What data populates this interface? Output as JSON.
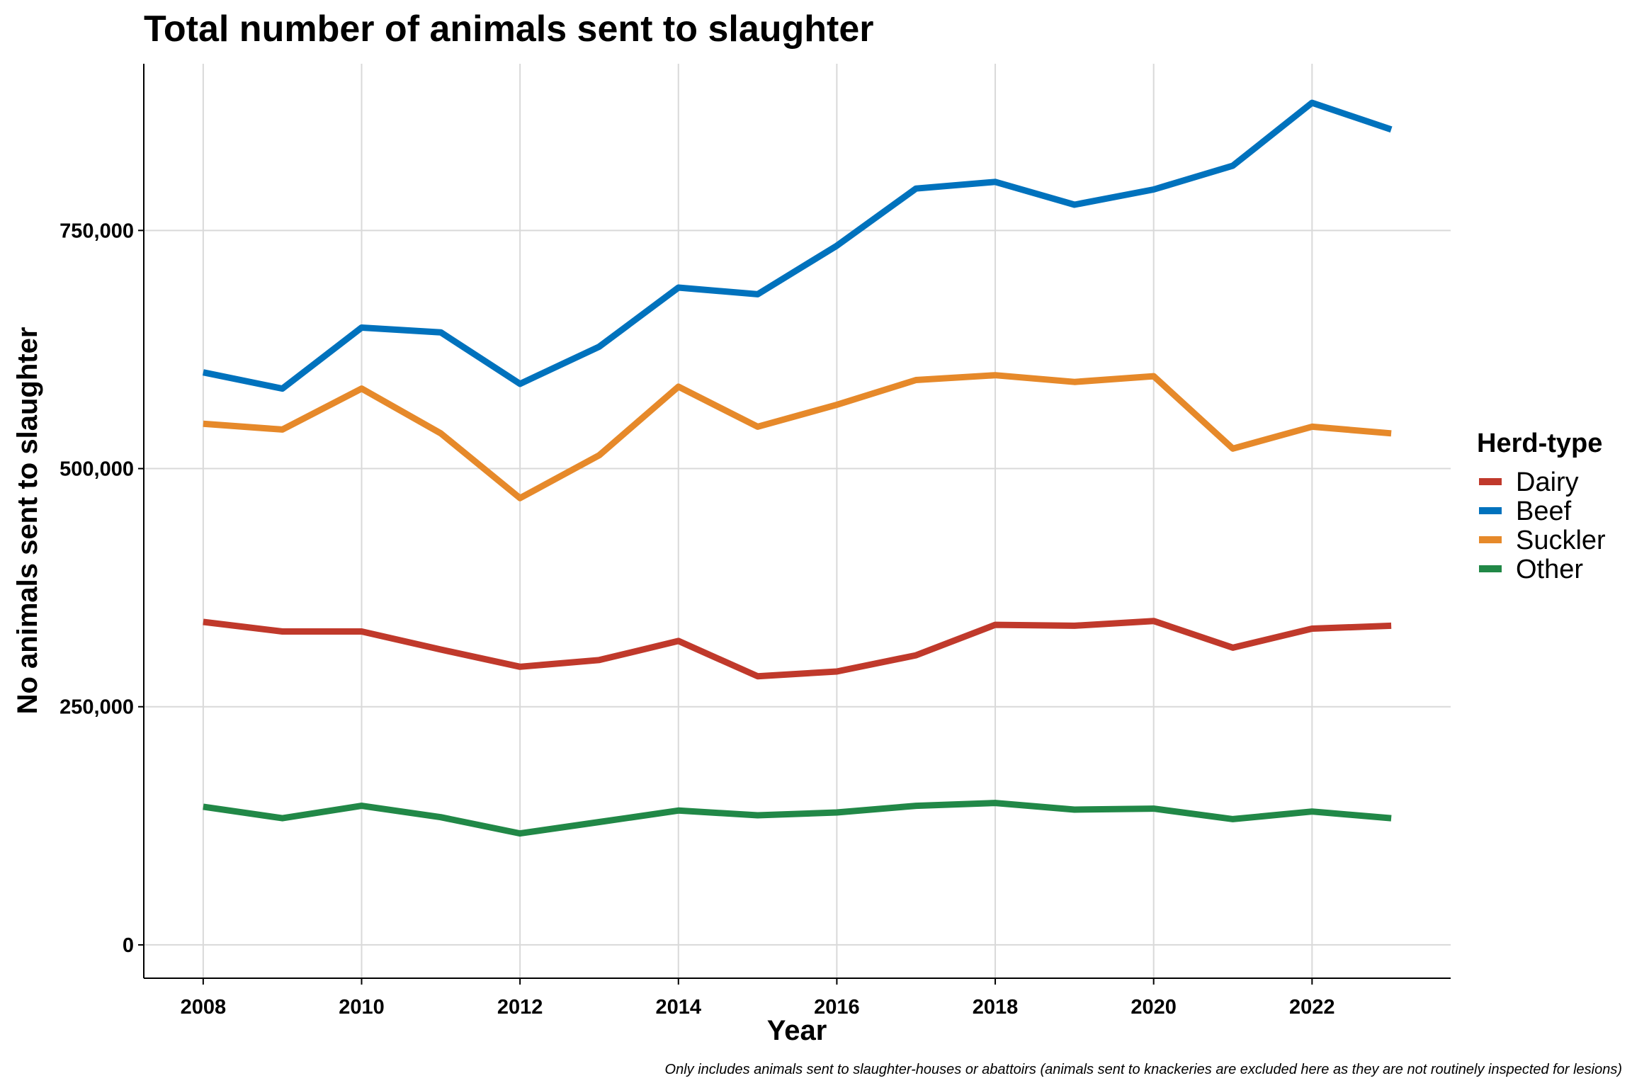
{
  "chart_data": {
    "type": "line",
    "title": "Total number of animals sent to slaughter",
    "xlabel": "Year",
    "ylabel": "No animals sent to slaughter",
    "caption": "Only includes animals sent to slaughter-houses or abattoirs (animals sent to knackeries are excluded here as they are not routinely inspected for lesions)",
    "x": [
      2008,
      2009,
      2010,
      2011,
      2012,
      2013,
      2014,
      2015,
      2016,
      2017,
      2018,
      2019,
      2020,
      2021,
      2022,
      2023
    ],
    "x_ticks": [
      2008,
      2010,
      2012,
      2014,
      2016,
      2018,
      2020,
      2022
    ],
    "x_tick_labels": [
      "2008",
      "2010",
      "2012",
      "2014",
      "2016",
      "2018",
      "2020",
      "2022"
    ],
    "xlim": [
      2007.25,
      2023.75
    ],
    "y_ticks": [
      0,
      250000,
      500000,
      750000
    ],
    "y_tick_labels": [
      "0",
      "250,000",
      "500,000",
      "750,000"
    ],
    "ylim": [
      -35000,
      925000
    ],
    "grid": true,
    "legend": {
      "title": "Herd-type",
      "position": "right"
    },
    "series": [
      {
        "name": "Dairy",
        "color": "#c0392b",
        "values": [
          339000,
          329000,
          329000,
          310000,
          292000,
          299000,
          319000,
          282000,
          287000,
          304000,
          336000,
          335000,
          340000,
          312000,
          332000,
          335000
        ]
      },
      {
        "name": "Beef",
        "color": "#0072bd",
        "values": [
          601000,
          584000,
          648000,
          643000,
          589000,
          628000,
          690000,
          683000,
          734000,
          794000,
          801000,
          777000,
          793000,
          818000,
          884000,
          856000
        ]
      },
      {
        "name": "Suckler",
        "color": "#e6892a",
        "values": [
          547000,
          541000,
          584000,
          537000,
          469000,
          514000,
          586000,
          544000,
          567000,
          593000,
          598000,
          591000,
          597000,
          521000,
          544000,
          537000
        ]
      },
      {
        "name": "Other",
        "color": "#218847",
        "values": [
          145000,
          133000,
          146000,
          134000,
          117000,
          129000,
          141000,
          136000,
          139000,
          146000,
          149000,
          142000,
          143000,
          132000,
          140000,
          133000
        ]
      }
    ]
  }
}
